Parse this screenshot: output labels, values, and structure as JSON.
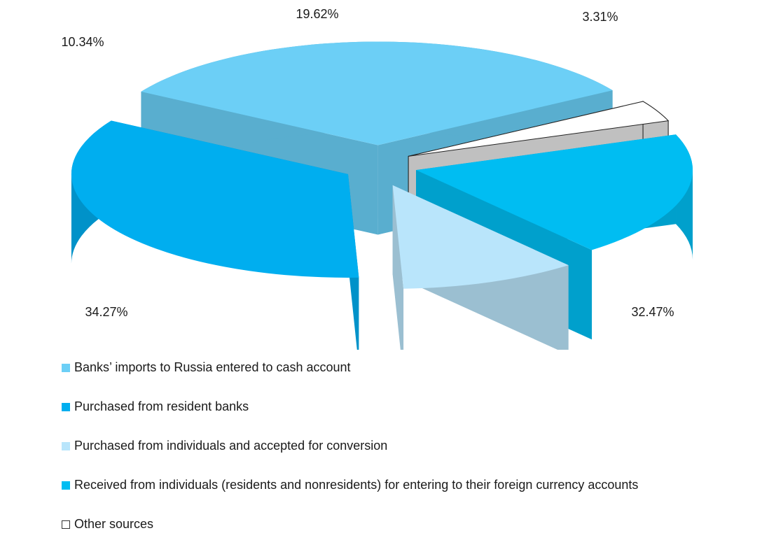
{
  "chart_data": {
    "type": "pie",
    "title": "",
    "slices": [
      {
        "name": "Banks’ imports  to Russia entered  to cash account",
        "value": 32.47,
        "label": "32.47%",
        "color": "#6ccff6",
        "side_color": "#59aecf"
      },
      {
        "name": "Purchased from resident banks",
        "value": 34.27,
        "label": "34.27%",
        "color": "#00aeef",
        "side_color": "#0092c9"
      },
      {
        "name": "Purchased from individuals and accepted for conversion",
        "value": 10.34,
        "label": "10.34%",
        "color": "#b9e5fb",
        "side_color": "#9bbfd1"
      },
      {
        "name": "Received from individuals (residents and nonresidents) for entering to their foreign currency accounts",
        "value": 19.62,
        "label": "19.62%",
        "color": "#00bdf2",
        "side_color": "#00a0cc"
      },
      {
        "name": "Other sources",
        "value": 3.31,
        "label": "3.31%",
        "color": "#ffffff",
        "side_color": "#c0c0c0"
      }
    ],
    "legend": {
      "position": "bottom"
    }
  }
}
